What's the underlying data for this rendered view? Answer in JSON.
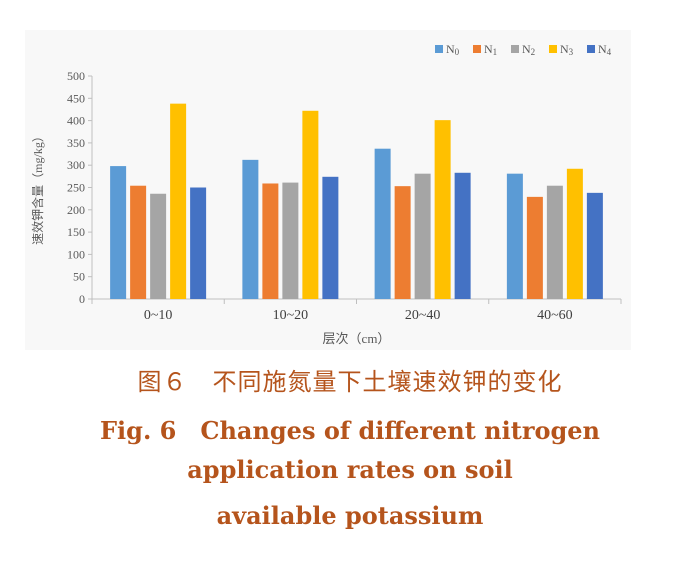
{
  "chart_data": {
    "type": "bar",
    "xlabel": "层次（cm）",
    "ylabel": "速效钾含量（mg/kg）",
    "ylim": [
      0,
      500
    ],
    "yticks": [
      "0",
      "50",
      "100",
      "150",
      "200",
      "250",
      "300",
      "350",
      "400",
      "450",
      "500"
    ],
    "categories": [
      "0~10",
      "10~20",
      "20~40",
      "40~60"
    ],
    "legend_position": "top-right",
    "grid": false,
    "series": [
      {
        "name": "N0",
        "base": "N",
        "sub": "0",
        "color": "#5b9bd5",
        "values": [
          298,
          312,
          337,
          281
        ]
      },
      {
        "name": "N1",
        "base": "N",
        "sub": "1",
        "color": "#ed7d31",
        "values": [
          254,
          259,
          253,
          229
        ]
      },
      {
        "name": "N2",
        "base": "N",
        "sub": "2",
        "color": "#a5a5a5",
        "values": [
          236,
          261,
          281,
          254
        ]
      },
      {
        "name": "N3",
        "base": "N",
        "sub": "3",
        "color": "#ffc000",
        "values": [
          438,
          422,
          401,
          292
        ]
      },
      {
        "name": "N4",
        "base": "N",
        "sub": "4",
        "color": "#4472c4",
        "values": [
          250,
          274,
          283,
          238
        ]
      }
    ]
  },
  "caption": {
    "cn": "图６　不同施氮量下土壤速效钾的变化",
    "en_line1": "Fig. 6　Changes of different nitrogen",
    "en_line2": "application rates on soil",
    "en_line3": "available potassium"
  }
}
